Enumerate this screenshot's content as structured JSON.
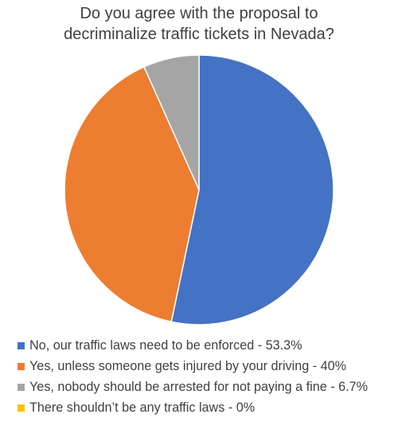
{
  "chart_data": {
    "type": "pie",
    "title_lines": [
      "Do you agree with the proposal to",
      "decriminalize traffic tickets in Nevada?"
    ],
    "slices": [
      {
        "label": "No, our traffic laws need to be enforced - 53.3%",
        "value": 53.3,
        "color": "#4472c4"
      },
      {
        "label": "Yes, unless someone gets injured by your driving - 40%",
        "value": 40,
        "color": "#ed7d31"
      },
      {
        "label": "Yes, nobody should be arrested for not paying a fine - 6.7%",
        "value": 6.7,
        "color": "#a5a5a5"
      },
      {
        "label": "There shouldn’t be any traffic laws - 0%",
        "value": 0,
        "color": "#ffc000"
      }
    ],
    "legend_position": "bottom-left"
  }
}
